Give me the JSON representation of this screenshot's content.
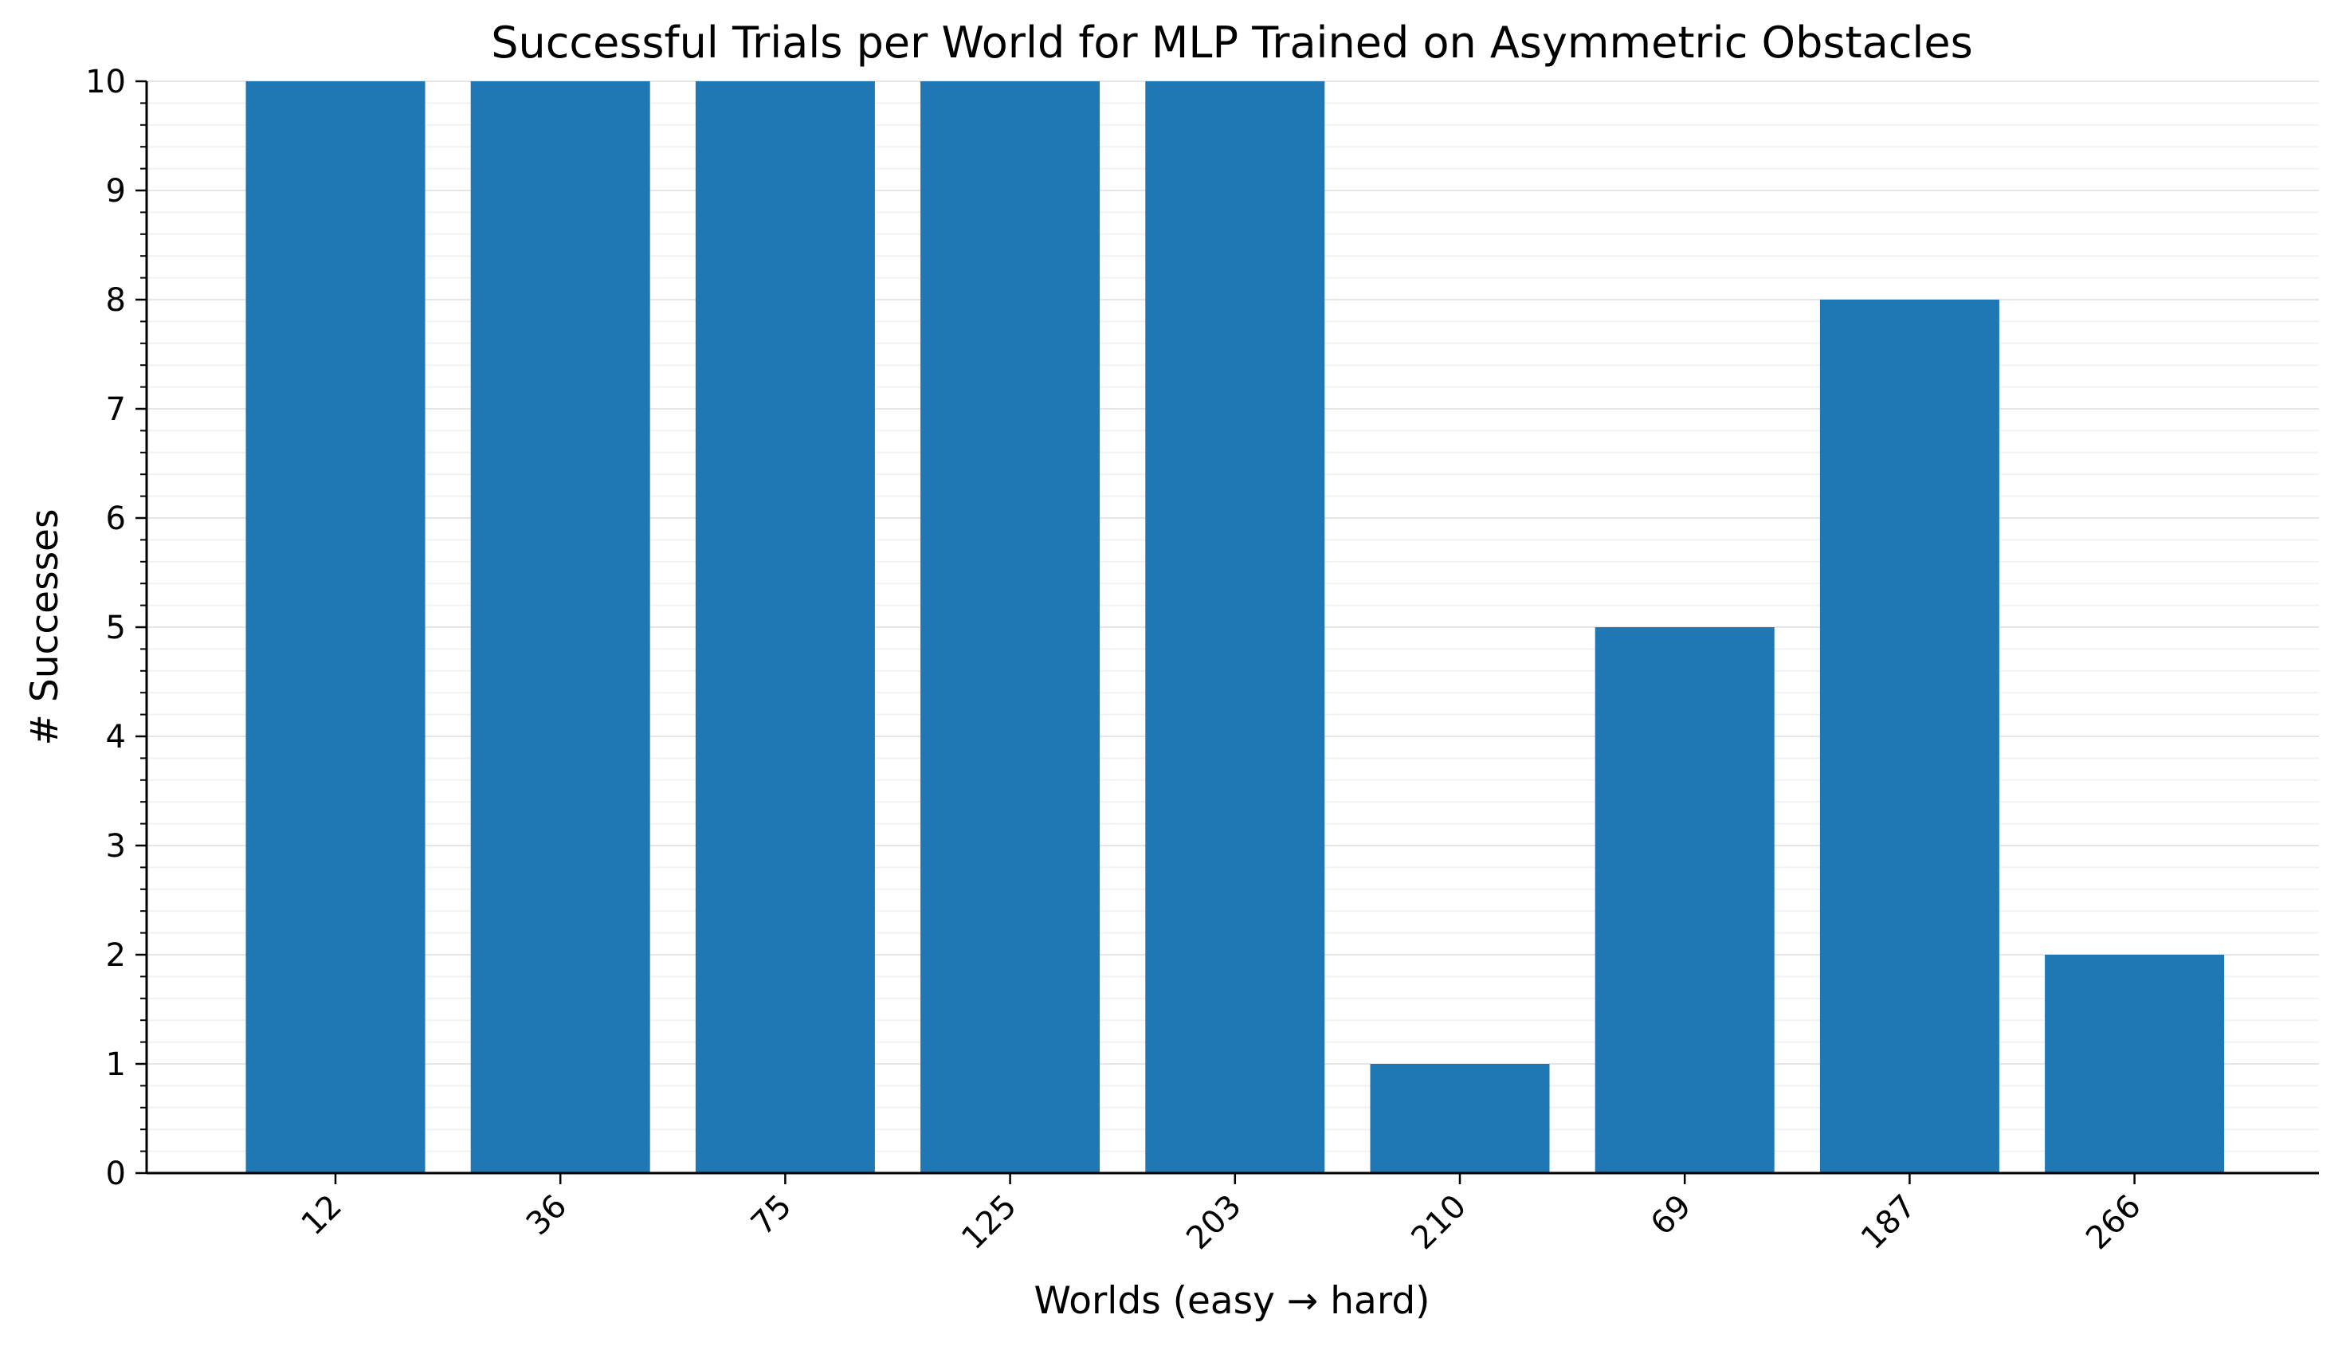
{
  "chart_data": {
    "type": "bar",
    "title": "Successful Trials per World for MLP Trained on Asymmetric Obstacles",
    "xlabel": "Worlds (easy → hard)",
    "ylabel": "# Successes",
    "categories": [
      "12",
      "36",
      "75",
      "125",
      "203",
      "210",
      "69",
      "187",
      "266"
    ],
    "values": [
      10,
      10,
      10,
      10,
      10,
      1,
      5,
      8,
      2
    ],
    "ylim": [
      0,
      10
    ],
    "yticks": [
      "0",
      "1",
      "2",
      "3",
      "4",
      "5",
      "6",
      "7",
      "8",
      "9",
      "10"
    ],
    "grid": true,
    "legend": "none",
    "bar_color": "#1f77b4"
  }
}
